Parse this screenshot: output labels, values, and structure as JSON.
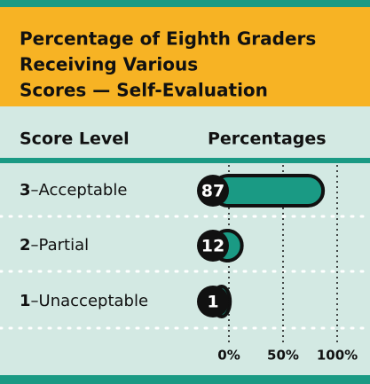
{
  "chart_data": {
    "type": "bar",
    "title": [
      "Percentage of Eighth Graders",
      "Receiving Various",
      "Scores — Self-Evaluation"
    ],
    "column_headers": [
      "Score Level",
      "Percentages"
    ],
    "categories": [
      "3–Acceptable",
      "2–Partial",
      "1–Unacceptable"
    ],
    "values": [
      87,
      12,
      1
    ],
    "color": "#1a9a84",
    "xlim": [
      0,
      100
    ],
    "xticks": [
      {
        "value": 0,
        "label": "0%"
      },
      {
        "value": 50,
        "label": "50%"
      },
      {
        "value": 100,
        "label": "100%"
      }
    ],
    "grid": true
  }
}
